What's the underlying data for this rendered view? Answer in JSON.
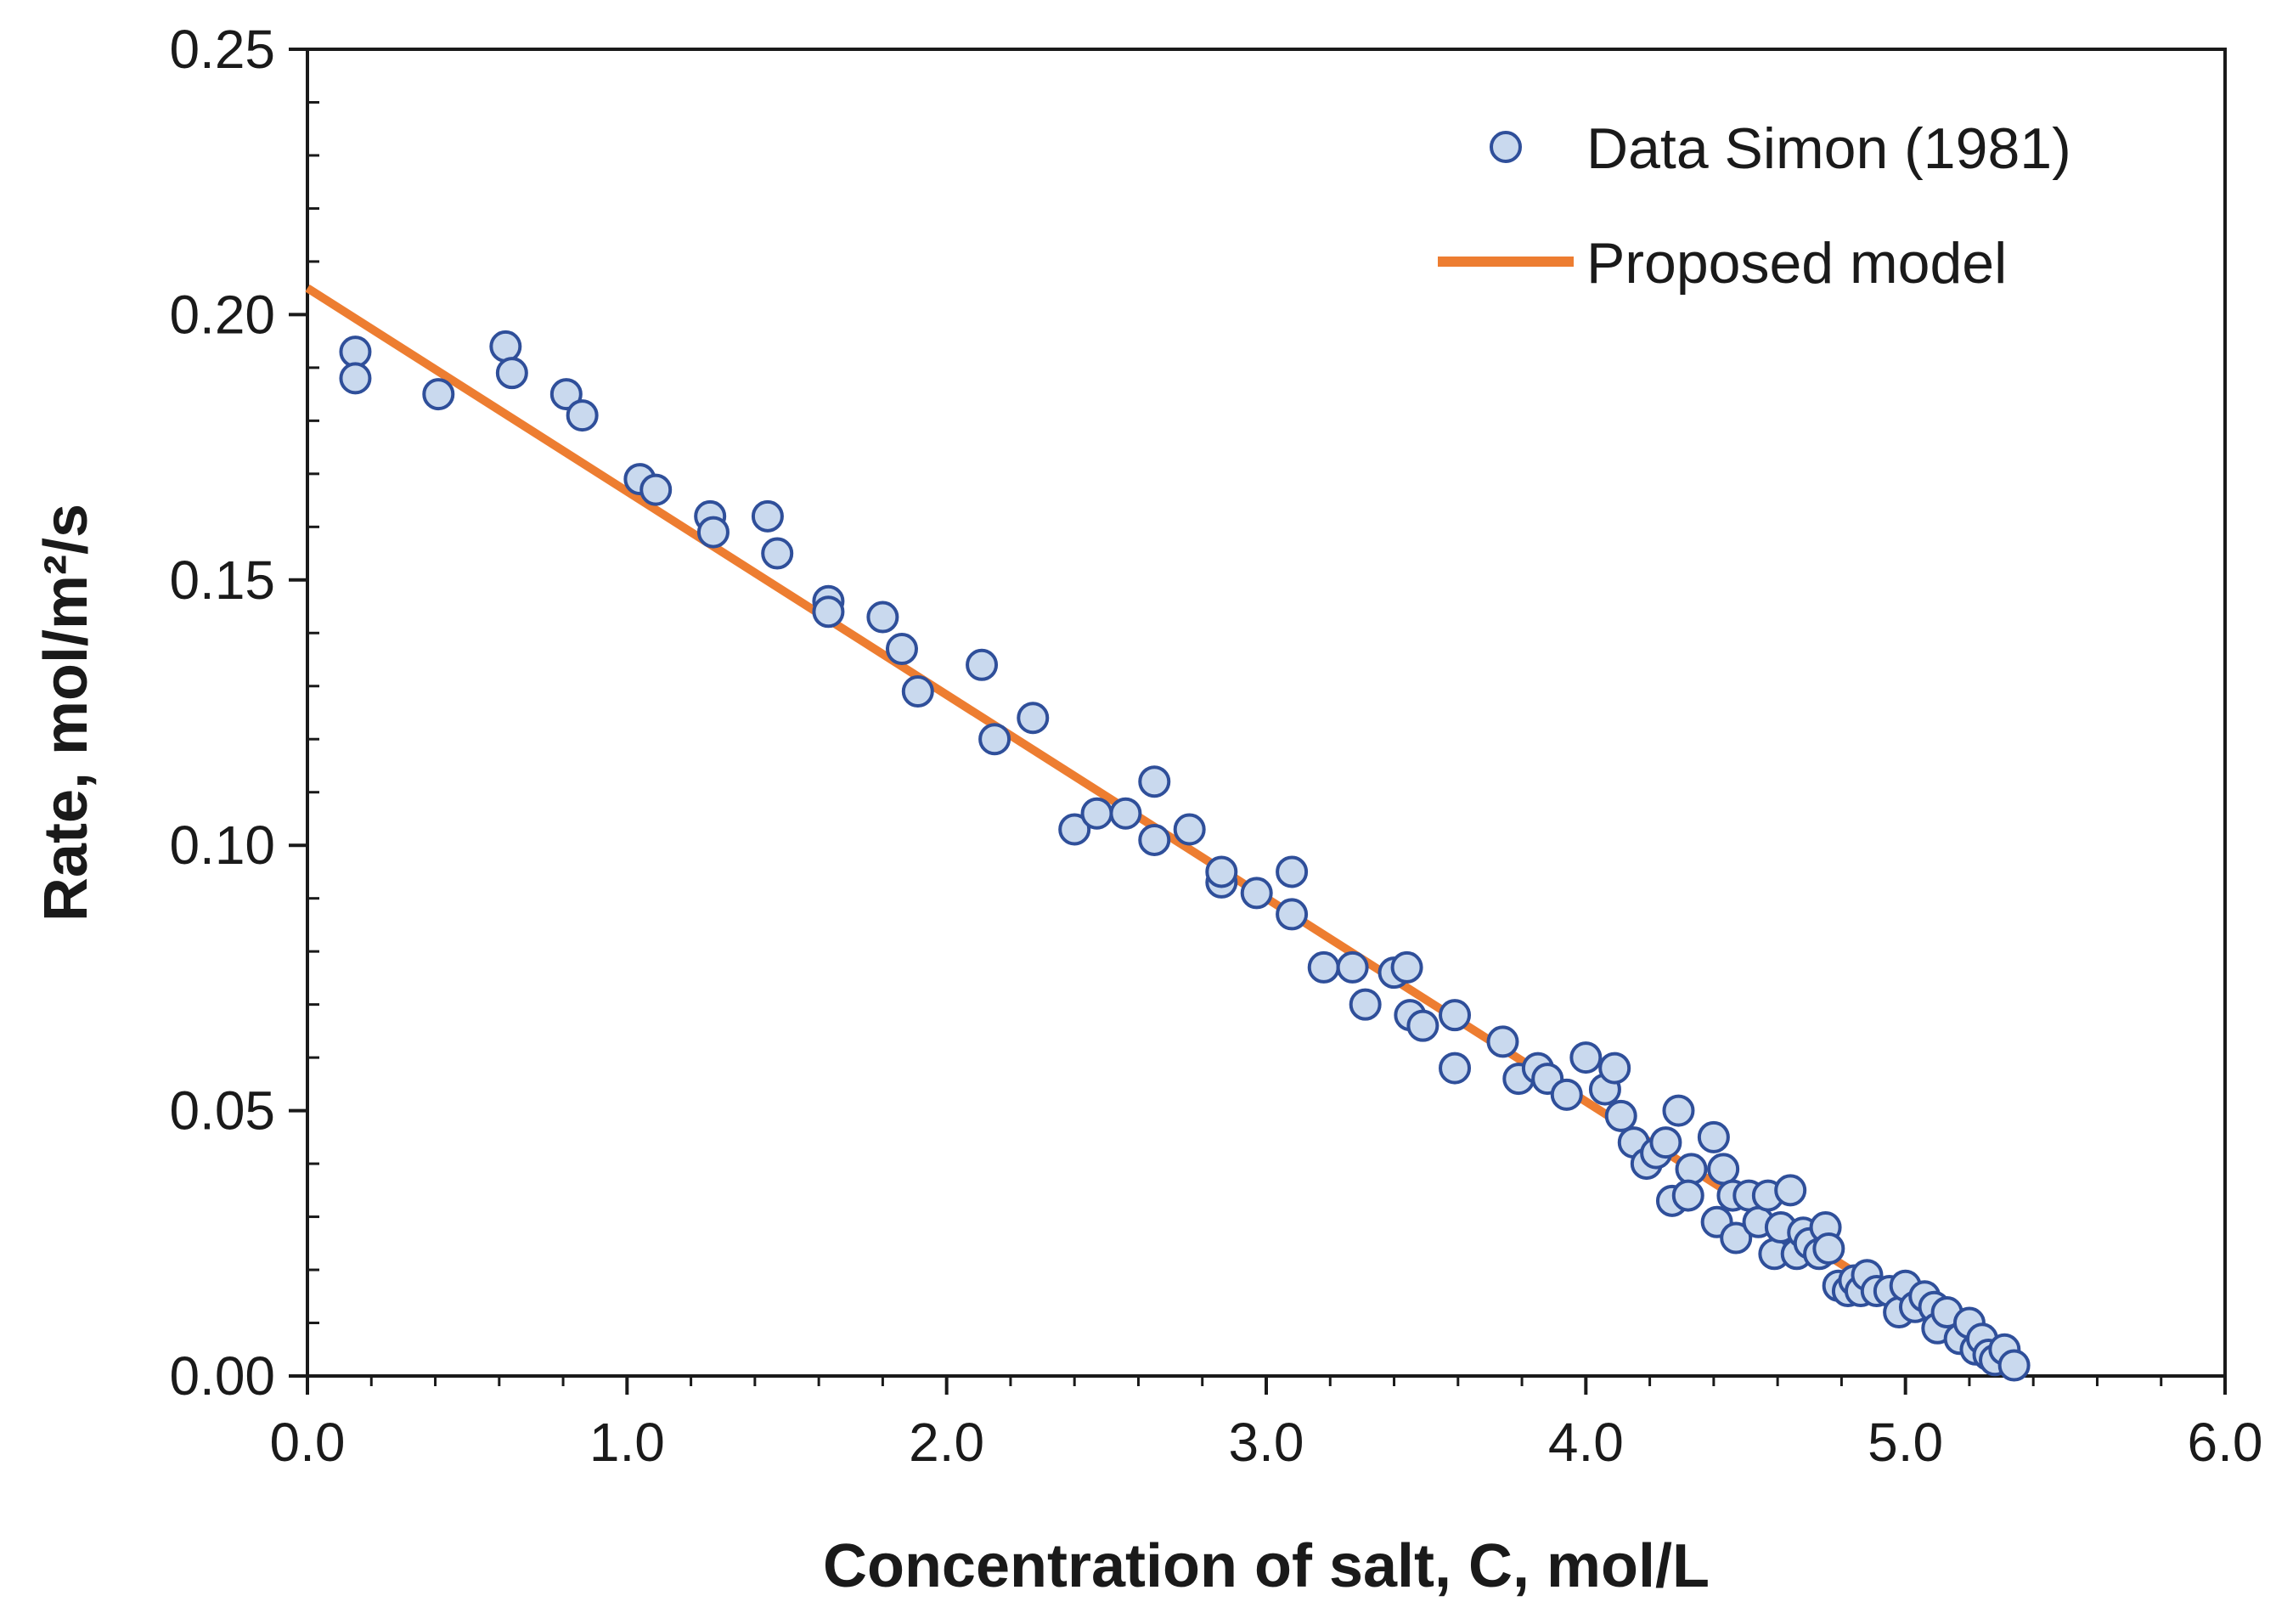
{
  "chart_data": {
    "type": "scatter",
    "title": "",
    "xlabel": "Concentration of salt, C, mol/L",
    "ylabel": "Rate, mol/m²/s",
    "xlim": [
      0,
      6
    ],
    "ylim": [
      0,
      0.25
    ],
    "x_ticks": [
      0,
      1,
      2,
      3,
      4,
      5,
      6
    ],
    "x_tick_labels": [
      "0.0",
      "1.0",
      "2.0",
      "3.0",
      "4.0",
      "5.0",
      "6.0"
    ],
    "y_ticks": [
      0,
      0.05,
      0.1,
      0.15,
      0.2,
      0.25
    ],
    "y_tick_labels": [
      "0.00",
      "0.05",
      "0.10",
      "0.15",
      "0.20",
      "0.25"
    ],
    "grid": false,
    "legend_position": "top-right",
    "series": [
      {
        "name": "Data Simon (1981)",
        "kind": "scatter",
        "marker_fill": "#c9d9ee",
        "marker_edge": "#2f4f9a",
        "points": [
          [
            0.15,
            0.193
          ],
          [
            0.15,
            0.188
          ],
          [
            0.41,
            0.185
          ],
          [
            0.62,
            0.194
          ],
          [
            0.64,
            0.189
          ],
          [
            0.81,
            0.185
          ],
          [
            0.86,
            0.181
          ],
          [
            1.04,
            0.169
          ],
          [
            1.09,
            0.167
          ],
          [
            1.26,
            0.162
          ],
          [
            1.27,
            0.159
          ],
          [
            1.44,
            0.162
          ],
          [
            1.47,
            0.155
          ],
          [
            1.63,
            0.146
          ],
          [
            1.63,
            0.144
          ],
          [
            1.8,
            0.143
          ],
          [
            1.86,
            0.137
          ],
          [
            1.91,
            0.129
          ],
          [
            2.11,
            0.134
          ],
          [
            2.15,
            0.12
          ],
          [
            2.27,
            0.124
          ],
          [
            2.4,
            0.103
          ],
          [
            2.47,
            0.106
          ],
          [
            2.56,
            0.106
          ],
          [
            2.65,
            0.112
          ],
          [
            2.65,
            0.101
          ],
          [
            2.76,
            0.103
          ],
          [
            2.86,
            0.093
          ],
          [
            2.86,
            0.095
          ],
          [
            2.97,
            0.091
          ],
          [
            3.08,
            0.095
          ],
          [
            3.08,
            0.087
          ],
          [
            3.18,
            0.077
          ],
          [
            3.27,
            0.077
          ],
          [
            3.31,
            0.07
          ],
          [
            3.4,
            0.076
          ],
          [
            3.44,
            0.077
          ],
          [
            3.45,
            0.068
          ],
          [
            3.49,
            0.066
          ],
          [
            3.59,
            0.068
          ],
          [
            3.59,
            0.058
          ],
          [
            3.74,
            0.063
          ],
          [
            3.79,
            0.056
          ],
          [
            3.85,
            0.058
          ],
          [
            3.88,
            0.056
          ],
          [
            3.94,
            0.053
          ],
          [
            4.0,
            0.06
          ],
          [
            4.06,
            0.054
          ],
          [
            4.09,
            0.058
          ],
          [
            4.11,
            0.049
          ],
          [
            4.15,
            0.044
          ],
          [
            4.19,
            0.04
          ],
          [
            4.22,
            0.042
          ],
          [
            4.25,
            0.044
          ],
          [
            4.27,
            0.033
          ],
          [
            4.29,
            0.05
          ],
          [
            4.33,
            0.039
          ],
          [
            4.32,
            0.034
          ],
          [
            4.4,
            0.045
          ],
          [
            4.41,
            0.029
          ],
          [
            4.43,
            0.039
          ],
          [
            4.46,
            0.034
          ],
          [
            4.47,
            0.026
          ],
          [
            4.51,
            0.034
          ],
          [
            4.54,
            0.029
          ],
          [
            4.57,
            0.034
          ],
          [
            4.59,
            0.023
          ],
          [
            4.61,
            0.028
          ],
          [
            4.64,
            0.035
          ],
          [
            4.66,
            0.023
          ],
          [
            4.68,
            0.027
          ],
          [
            4.7,
            0.025
          ],
          [
            4.73,
            0.023
          ],
          [
            4.75,
            0.028
          ],
          [
            4.76,
            0.024
          ],
          [
            4.79,
            0.017
          ],
          [
            4.82,
            0.016
          ],
          [
            4.84,
            0.018
          ],
          [
            4.86,
            0.016
          ],
          [
            4.88,
            0.019
          ],
          [
            4.91,
            0.016
          ],
          [
            4.95,
            0.016
          ],
          [
            4.98,
            0.012
          ],
          [
            5.0,
            0.017
          ],
          [
            5.03,
            0.013
          ],
          [
            5.06,
            0.015
          ],
          [
            5.09,
            0.013
          ],
          [
            5.1,
            0.009
          ],
          [
            5.13,
            0.012
          ],
          [
            5.17,
            0.007
          ],
          [
            5.2,
            0.01
          ],
          [
            5.22,
            0.005
          ],
          [
            5.24,
            0.007
          ],
          [
            5.26,
            0.004
          ],
          [
            5.28,
            0.003
          ],
          [
            5.31,
            0.005
          ],
          [
            5.34,
            0.002
          ]
        ]
      },
      {
        "name": "Proposed model",
        "kind": "line",
        "color": "#ed7d31",
        "points": [
          [
            0.0,
            0.205
          ],
          [
            5.35,
            0.0
          ]
        ]
      }
    ]
  }
}
